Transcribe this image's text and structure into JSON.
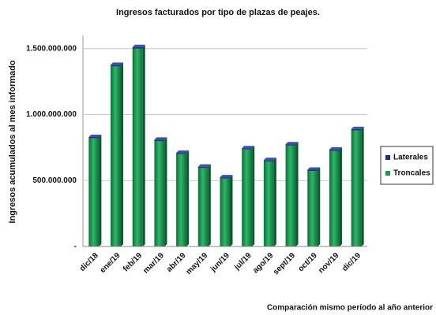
{
  "chart_data": {
    "type": "stacked_bar",
    "title": "Ingresos facturados por tipo de plazas de peajes.",
    "y_label": "Ingresos acumulados al mes informado",
    "x_label": "Comparación mismo período al año anterior",
    "categories": [
      "dic/18",
      "ene/19",
      "feb/19",
      "mar/19",
      "abr/19",
      "may/19",
      "jun/19",
      "jul/19",
      "ago/19",
      "sept/19",
      "oct/19",
      "nov/19",
      "dic/19"
    ],
    "series": [
      {
        "name": "Troncales",
        "color": "#1a9a50",
        "values": [
          820000000,
          1365000000,
          1500000000,
          800000000,
          700000000,
          595000000,
          515000000,
          735000000,
          645000000,
          765000000,
          572000000,
          725000000,
          880000000
        ]
      },
      {
        "name": "Laterales",
        "color": "#1f2f8a",
        "values": [
          10000000,
          12000000,
          12000000,
          10000000,
          10000000,
          10000000,
          10000000,
          10000000,
          10000000,
          10000000,
          10000000,
          10000000,
          10000000
        ]
      }
    ],
    "ylim": [
      0,
      1600000000
    ],
    "yticks": [
      {
        "value": 0,
        "label": "-"
      },
      {
        "value": 500000000,
        "label": "500.000.000"
      },
      {
        "value": 1000000000,
        "label": "1.000.000.000"
      },
      {
        "value": 1500000000,
        "label": "1.500.000.000"
      }
    ],
    "grid": true,
    "legend": "right"
  }
}
